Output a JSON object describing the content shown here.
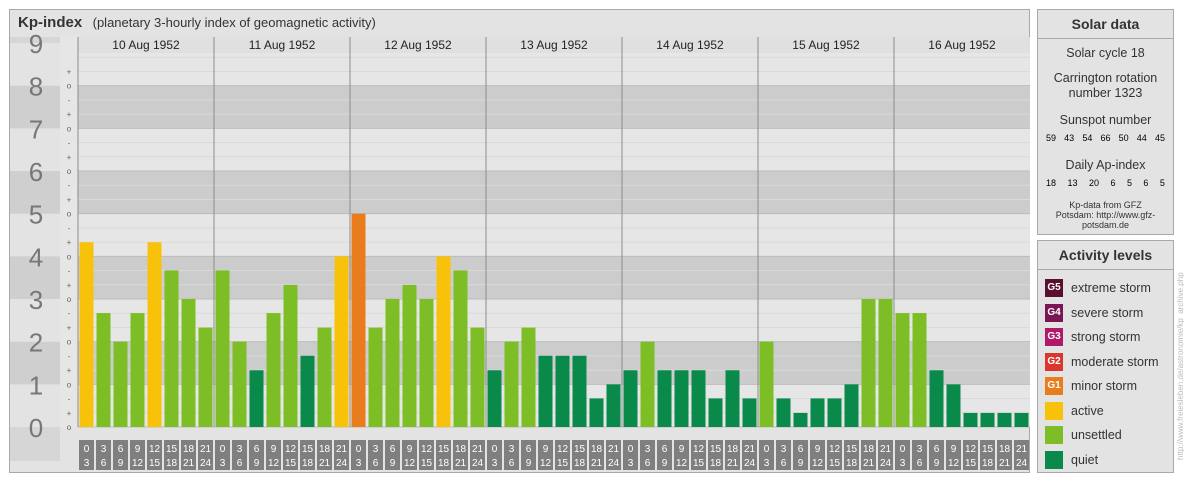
{
  "header": {
    "title": "Kp-index",
    "subtitle": "(planetary 3-hourly index of geomagnetic activity)"
  },
  "solar": {
    "heading": "Solar data",
    "cycle": "Solar cycle 18",
    "carrington": "Carrington rotation number 1323",
    "sunspot_label": "Sunspot number",
    "sunspots": [
      "59",
      "43",
      "54",
      "66",
      "50",
      "44",
      "45"
    ],
    "ap_label": "Daily Ap-index",
    "ap": [
      "18",
      "13",
      "20",
      "6",
      "5",
      "6",
      "5"
    ],
    "source": "Kp-data from GFZ Potsdam: http://www.gfz-potsdam.de"
  },
  "legend": {
    "heading": "Activity levels",
    "items": [
      {
        "code": "G5",
        "label": "extreme storm",
        "color": "#5a0f2e"
      },
      {
        "code": "G4",
        "label": "severe storm",
        "color": "#7b1654"
      },
      {
        "code": "G3",
        "label": "strong storm",
        "color": "#b0186a"
      },
      {
        "code": "G2",
        "label": "moderate storm",
        "color": "#d9372d"
      },
      {
        "code": "G1",
        "label": "minor storm",
        "color": "#e97c1d"
      },
      {
        "code": "",
        "label": "active",
        "color": "#f9c20a"
      },
      {
        "code": "",
        "label": "unsettled",
        "color": "#7dbd26"
      },
      {
        "code": "",
        "label": "quiet",
        "color": "#0a8a4a"
      }
    ]
  },
  "watermark": "http://www.freiesleben.de/astronomie/kp_archive.php",
  "chart_data": {
    "type": "bar",
    "days": [
      "10 Aug 1952",
      "11 Aug 1952",
      "12 Aug 1952",
      "13 Aug 1952",
      "14 Aug 1952",
      "15 Aug 1952",
      "16 Aug 1952"
    ],
    "interval_labels": [
      [
        "0",
        "3"
      ],
      [
        "3",
        "6"
      ],
      [
        "6",
        "9"
      ],
      [
        "9",
        "12"
      ],
      [
        "12",
        "15"
      ],
      [
        "15",
        "18"
      ],
      [
        "18",
        "21"
      ],
      [
        "21",
        "24"
      ]
    ],
    "y_ticks": [
      "0",
      "1",
      "2",
      "3",
      "4",
      "5",
      "6",
      "7",
      "8",
      "9"
    ],
    "sub_ticks": [
      "+",
      "o",
      "-"
    ],
    "ylim": [
      0,
      9
    ],
    "values": [
      4.33,
      2.67,
      2.0,
      2.67,
      4.33,
      3.67,
      3.0,
      2.33,
      3.67,
      2.0,
      1.33,
      2.67,
      3.33,
      1.67,
      2.33,
      4.0,
      5.0,
      2.33,
      3.0,
      3.33,
      3.0,
      4.0,
      3.67,
      2.33,
      1.33,
      2.0,
      2.33,
      1.67,
      1.67,
      1.67,
      0.67,
      1.0,
      1.33,
      2.0,
      1.33,
      1.33,
      1.33,
      0.67,
      1.33,
      0.67,
      2.0,
      0.67,
      0.33,
      0.67,
      0.67,
      1.0,
      3.0,
      3.0,
      2.67,
      2.67,
      1.33,
      1.0,
      0.33,
      0.33,
      0.33,
      0.33
    ],
    "colors": {
      "quiet": "#0a8a4a",
      "unsettled": "#7dbd26",
      "active": "#f9c20a",
      "g1": "#e97c1d"
    }
  }
}
